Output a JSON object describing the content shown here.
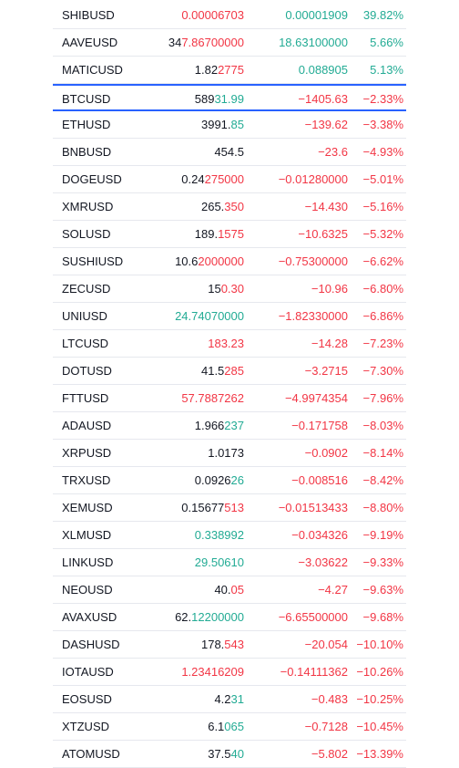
{
  "colors": {
    "up": "#22ab94",
    "down": "#f23645",
    "text": "#131722",
    "selected": "#2962ff",
    "divider": "#e6e8ee"
  },
  "selected_row": 3,
  "rows": [
    {
      "symbol": "SHIBUSD",
      "price": {
        "flash": "0.00006703"
      },
      "flash": "down",
      "change": "0.00001909",
      "change_pct": "39.82%",
      "trend": "up"
    },
    {
      "symbol": "AAVEUSD",
      "price": {
        "plain": "34",
        "flash": "7.86700000"
      },
      "flash": "down",
      "change": "18.63100000",
      "change_pct": "5.66%",
      "trend": "up"
    },
    {
      "symbol": "MATICUSD",
      "price": {
        "plain": "1.82",
        "flash": "2775"
      },
      "flash": "down",
      "change": "0.088905",
      "change_pct": "5.13%",
      "trend": "up"
    },
    {
      "symbol": "BTCUSD",
      "price": {
        "plain": "589",
        "flash": "31.99"
      },
      "flash": "up",
      "change": "−1405.63",
      "change_pct": "−2.33%",
      "trend": "down"
    },
    {
      "symbol": "ETHUSD",
      "price": {
        "plain": "3991.",
        "flash": "85"
      },
      "flash": "up",
      "change": "−139.62",
      "change_pct": "−3.38%",
      "trend": "down"
    },
    {
      "symbol": "BNBUSD",
      "price": {
        "plain": "454.5"
      },
      "change": "−23.6",
      "change_pct": "−4.93%",
      "trend": "down"
    },
    {
      "symbol": "DOGEUSD",
      "price": {
        "plain": "0.24",
        "flash": "275000"
      },
      "flash": "down",
      "change": "−0.01280000",
      "change_pct": "−5.01%",
      "trend": "down"
    },
    {
      "symbol": "XMRUSD",
      "price": {
        "plain": "265.",
        "flash": "350"
      },
      "flash": "down",
      "change": "−14.430",
      "change_pct": "−5.16%",
      "trend": "down"
    },
    {
      "symbol": "SOLUSD",
      "price": {
        "plain": "189.",
        "flash": "1575"
      },
      "flash": "down",
      "change": "−10.6325",
      "change_pct": "−5.32%",
      "trend": "down"
    },
    {
      "symbol": "SUSHIUSD",
      "price": {
        "plain": "10.6",
        "flash": "2000000"
      },
      "flash": "down",
      "change": "−0.75300000",
      "change_pct": "−6.62%",
      "trend": "down"
    },
    {
      "symbol": "ZECUSD",
      "price": {
        "plain": "15",
        "flash": "0.30"
      },
      "flash": "down",
      "change": "−10.96",
      "change_pct": "−6.80%",
      "trend": "down"
    },
    {
      "symbol": "UNIUSD",
      "price": {
        "flash": "24.74070000"
      },
      "flash": "up",
      "change": "−1.82330000",
      "change_pct": "−6.86%",
      "trend": "down"
    },
    {
      "symbol": "LTCUSD",
      "price": {
        "flash": "183.23"
      },
      "flash": "down",
      "change": "−14.28",
      "change_pct": "−7.23%",
      "trend": "down"
    },
    {
      "symbol": "DOTUSD",
      "price": {
        "plain": "41.5",
        "flash": "285"
      },
      "flash": "down",
      "change": "−3.2715",
      "change_pct": "−7.30%",
      "trend": "down"
    },
    {
      "symbol": "FTTUSD",
      "price": {
        "flash": "57.7887262"
      },
      "flash": "down",
      "change": "−4.9974354",
      "change_pct": "−7.96%",
      "trend": "down"
    },
    {
      "symbol": "ADAUSD",
      "price": {
        "plain": "1.966",
        "flash": "237"
      },
      "flash": "up",
      "change": "−0.171758",
      "change_pct": "−8.03%",
      "trend": "down"
    },
    {
      "symbol": "XRPUSD",
      "price": {
        "plain": "1.0173"
      },
      "change": "−0.0902",
      "change_pct": "−8.14%",
      "trend": "down"
    },
    {
      "symbol": "TRXUSD",
      "price": {
        "plain": "0.0926",
        "flash": "26"
      },
      "flash": "up",
      "change": "−0.008516",
      "change_pct": "−8.42%",
      "trend": "down"
    },
    {
      "symbol": "XEMUSD",
      "price": {
        "plain": "0.15677",
        "flash": "513"
      },
      "flash": "down",
      "change": "−0.01513433",
      "change_pct": "−8.80%",
      "trend": "down"
    },
    {
      "symbol": "XLMUSD",
      "price": {
        "flash": "0.338992"
      },
      "flash": "up",
      "change": "−0.034326",
      "change_pct": "−9.19%",
      "trend": "down"
    },
    {
      "symbol": "LINKUSD",
      "price": {
        "flash": "29.50610"
      },
      "flash": "up",
      "change": "−3.03622",
      "change_pct": "−9.33%",
      "trend": "down"
    },
    {
      "symbol": "NEOUSD",
      "price": {
        "plain": "40.",
        "flash": "05"
      },
      "flash": "down",
      "change": "−4.27",
      "change_pct": "−9.63%",
      "trend": "down"
    },
    {
      "symbol": "AVAXUSD",
      "price": {
        "plain": "62.",
        "flash": "12200000"
      },
      "flash": "up",
      "change": "−6.65500000",
      "change_pct": "−9.68%",
      "trend": "down"
    },
    {
      "symbol": "DASHUSD",
      "price": {
        "plain": "178.",
        "flash": "543"
      },
      "flash": "down",
      "change": "−20.054",
      "change_pct": "−10.10%",
      "trend": "down"
    },
    {
      "symbol": "IOTAUSD",
      "price": {
        "flash": "1.23416209"
      },
      "flash": "down",
      "change": "−0.14111362",
      "change_pct": "−10.26%",
      "trend": "down"
    },
    {
      "symbol": "EOSUSD",
      "price": {
        "plain": "4.2",
        "flash": "31"
      },
      "flash": "up",
      "change": "−0.483",
      "change_pct": "−10.25%",
      "trend": "down"
    },
    {
      "symbol": "XTZUSD",
      "price": {
        "plain": "6.1",
        "flash": "065"
      },
      "flash": "up",
      "change": "−0.7128",
      "change_pct": "−10.45%",
      "trend": "down"
    },
    {
      "symbol": "ATOMUSD",
      "price": {
        "plain": "37.5",
        "flash": "40"
      },
      "flash": "up",
      "change": "−5.802",
      "change_pct": "−13.39%",
      "trend": "down"
    }
  ]
}
